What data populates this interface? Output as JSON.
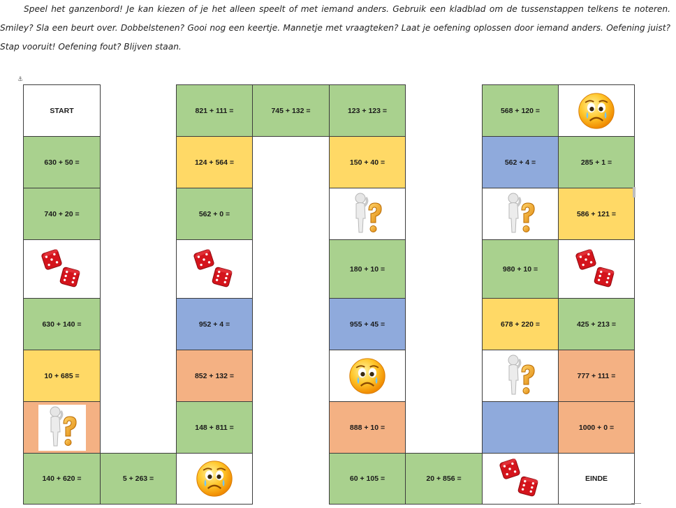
{
  "intro": {
    "text": "Speel het ganzenbord! Je kan kiezen of je het alleen speelt of met iemand anders. Gebruik een kladblad om de tussenstappen telkens te noteren. Smiley? Sla een beurt over. Dobbelstenen? Gooi nog een keertje. Mannetje met vraagteken? Laat je oefening oplossen door iemand anders. Oefening juist? Stap vooruit! Oefening fout? Blijven staan."
  },
  "colors": {
    "green": "#a9d18e",
    "yellow": "#ffd966",
    "blue": "#8faadc",
    "orange": "#f4b183",
    "white": "#ffffff"
  },
  "board": {
    "cells": [
      {
        "col": 0,
        "row": 0,
        "color": "white",
        "kind": "text",
        "label": "START"
      },
      {
        "col": 0,
        "row": 1,
        "color": "green",
        "kind": "text",
        "label": "630 + 50 ="
      },
      {
        "col": 0,
        "row": 2,
        "color": "green",
        "kind": "text",
        "label": "740 + 20 ="
      },
      {
        "col": 0,
        "row": 3,
        "color": "white",
        "kind": "dice"
      },
      {
        "col": 0,
        "row": 4,
        "color": "green",
        "kind": "text",
        "label": "630 + 140 ="
      },
      {
        "col": 0,
        "row": 5,
        "color": "yellow",
        "kind": "text",
        "label": "10 + 685 ="
      },
      {
        "col": 0,
        "row": 6,
        "color": "orange",
        "kind": "question"
      },
      {
        "col": 0,
        "row": 7,
        "color": "green",
        "kind": "text",
        "label": "140 + 620 ="
      },
      {
        "col": 1,
        "row": 7,
        "color": "green",
        "kind": "text",
        "label": "5 + 263 ="
      },
      {
        "col": 2,
        "row": 7,
        "color": "white",
        "kind": "smiley"
      },
      {
        "col": 2,
        "row": 6,
        "color": "green",
        "kind": "text",
        "label": "148 + 811 ="
      },
      {
        "col": 2,
        "row": 5,
        "color": "orange",
        "kind": "text",
        "label": "852 + 132 ="
      },
      {
        "col": 2,
        "row": 4,
        "color": "blue",
        "kind": "text",
        "label": "952 + 4 ="
      },
      {
        "col": 2,
        "row": 3,
        "color": "white",
        "kind": "dice"
      },
      {
        "col": 2,
        "row": 2,
        "color": "green",
        "kind": "text",
        "label": "562 + 0 ="
      },
      {
        "col": 2,
        "row": 1,
        "color": "yellow",
        "kind": "text",
        "label": "124 + 564 ="
      },
      {
        "col": 2,
        "row": 0,
        "color": "green",
        "kind": "text",
        "label": "821 + 111 ="
      },
      {
        "col": 3,
        "row": 0,
        "color": "green",
        "kind": "text",
        "label": "745 + 132 ="
      },
      {
        "col": 4,
        "row": 0,
        "color": "green",
        "kind": "text",
        "label": "123 + 123 ="
      },
      {
        "col": 4,
        "row": 1,
        "color": "yellow",
        "kind": "text",
        "label": "150 + 40 ="
      },
      {
        "col": 4,
        "row": 2,
        "color": "white",
        "kind": "question"
      },
      {
        "col": 4,
        "row": 3,
        "color": "green",
        "kind": "text",
        "label": "180 + 10 ="
      },
      {
        "col": 4,
        "row": 4,
        "color": "blue",
        "kind": "text",
        "label": "955 + 45 ="
      },
      {
        "col": 4,
        "row": 5,
        "color": "white",
        "kind": "smiley"
      },
      {
        "col": 4,
        "row": 6,
        "color": "orange",
        "kind": "text",
        "label": "888 + 10 ="
      },
      {
        "col": 4,
        "row": 7,
        "color": "green",
        "kind": "text",
        "label": "60 + 105 ="
      },
      {
        "col": 5,
        "row": 7,
        "color": "green",
        "kind": "text",
        "label": "20 + 856 ="
      },
      {
        "col": 6,
        "row": 7,
        "color": "white",
        "kind": "dice"
      },
      {
        "col": 6,
        "row": 6,
        "color": "blue",
        "kind": "empty"
      },
      {
        "col": 6,
        "row": 5,
        "color": "white",
        "kind": "question"
      },
      {
        "col": 6,
        "row": 4,
        "color": "yellow",
        "kind": "text",
        "label": "678 + 220 ="
      },
      {
        "col": 6,
        "row": 3,
        "color": "green",
        "kind": "text",
        "label": "980 + 10 ="
      },
      {
        "col": 6,
        "row": 2,
        "color": "white",
        "kind": "question"
      },
      {
        "col": 6,
        "row": 1,
        "color": "blue",
        "kind": "text",
        "label": "562 + 4 ="
      },
      {
        "col": 6,
        "row": 0,
        "color": "green",
        "kind": "text",
        "label": "568 + 120 ="
      },
      {
        "col": 7,
        "row": 0,
        "color": "white",
        "kind": "smiley"
      },
      {
        "col": 7,
        "row": 1,
        "color": "green",
        "kind": "text",
        "label": "285 + 1 ="
      },
      {
        "col": 7,
        "row": 2,
        "color": "yellow",
        "kind": "text",
        "label": "586 + 121 ="
      },
      {
        "col": 7,
        "row": 3,
        "color": "white",
        "kind": "dice"
      },
      {
        "col": 7,
        "row": 4,
        "color": "green",
        "kind": "text",
        "label": "425 + 213 ="
      },
      {
        "col": 7,
        "row": 5,
        "color": "orange",
        "kind": "text",
        "label": "777 + 111 ="
      },
      {
        "col": 7,
        "row": 6,
        "color": "orange",
        "kind": "text",
        "label": "1000 + 0 ="
      },
      {
        "col": 7,
        "row": 7,
        "color": "white",
        "kind": "text",
        "label": "EINDE"
      }
    ]
  }
}
